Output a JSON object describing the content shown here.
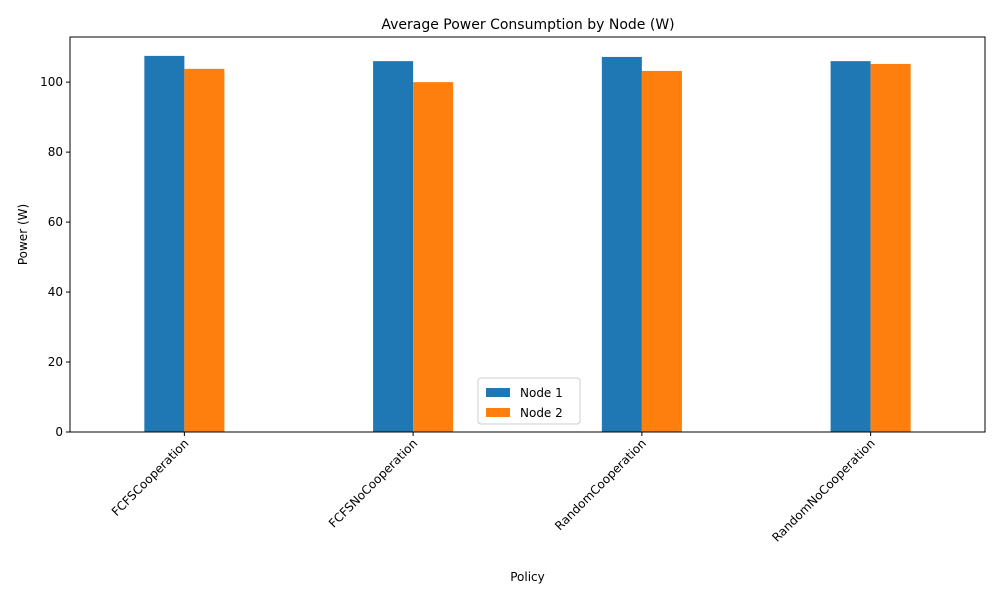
{
  "chart_data": {
    "type": "bar",
    "title": "Average Power Consumption by Node (W)",
    "xlabel": "Policy",
    "ylabel": "Power (W)",
    "categories": [
      "FCFSCooperation",
      "FCFSNoCooperation",
      "RandomCooperation",
      "RandomNoCooperation"
    ],
    "series": [
      {
        "name": "Node 1",
        "color": "#1f77b4",
        "values": [
          107.5,
          106.0,
          107.2,
          106.0
        ]
      },
      {
        "name": "Node 2",
        "color": "#ff7f0e",
        "values": [
          103.8,
          100.0,
          103.2,
          105.2
        ]
      }
    ],
    "ylim": [
      0,
      112.9
    ],
    "yticks": [
      0,
      20,
      40,
      60,
      80,
      100
    ],
    "ytick_labels": [
      "0",
      "20",
      "40",
      "60",
      "80",
      "100"
    ],
    "grid": false,
    "legend_position": "bottom-center"
  }
}
